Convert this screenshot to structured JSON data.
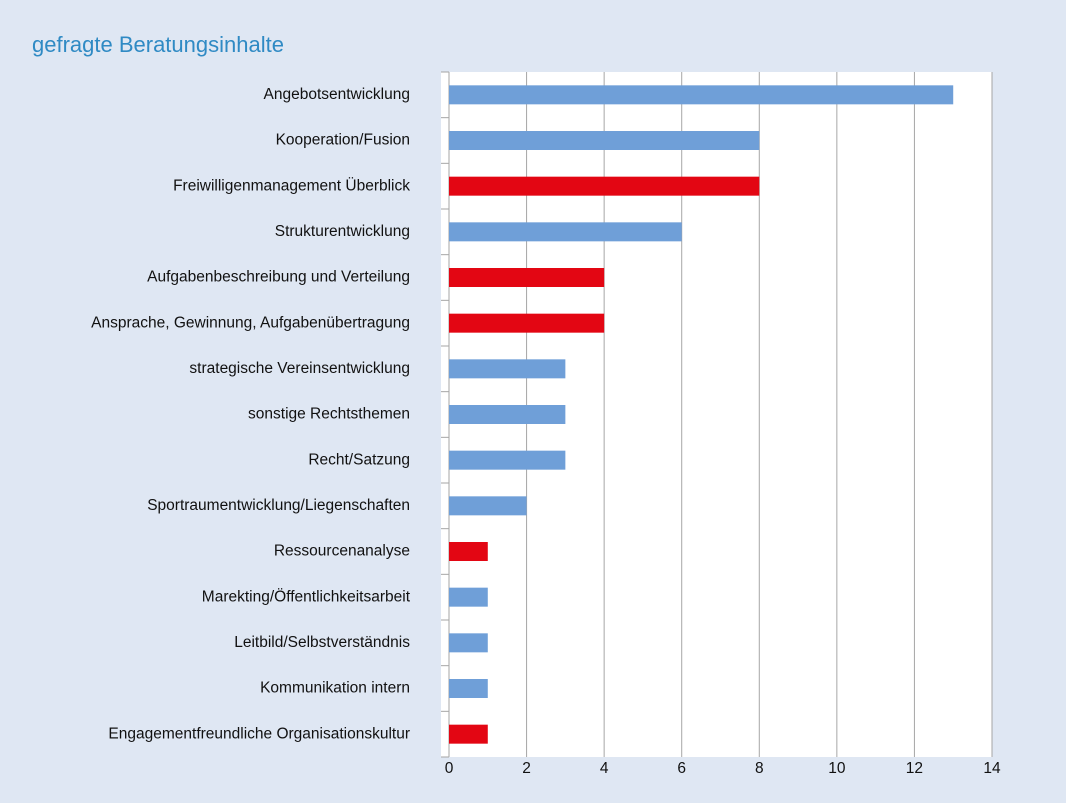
{
  "chart_data": {
    "type": "bar",
    "orientation": "horizontal",
    "title": "gefragte Beratungsinhalte",
    "categories": [
      "Angebotsentwicklung",
      "Kooperation/Fusion",
      "Freiwilligenmanagement Überblick",
      "Strukturentwicklung",
      "Aufgabenbeschreibung und Verteilung",
      "Ansprache, Gewinnung, Aufgabenübertragung",
      "strategische Vereinsentwicklung",
      "sonstige Rechtsthemen",
      "Recht/Satzung",
      "Sportraumentwicklung/Liegenschaften",
      "Ressourcenanalyse",
      "Marekting/Öffentlichkeitsarbeit",
      "Leitbild/Selbstverständnis",
      "Kommunikation intern",
      "Engagementfreundliche Organisationskultur"
    ],
    "values": [
      13,
      8,
      8,
      6,
      4,
      4,
      3,
      3,
      3,
      2,
      1,
      1,
      1,
      1,
      1
    ],
    "colors": [
      "#6f9fd8",
      "#6f9fd8",
      "#e30613",
      "#6f9fd8",
      "#e30613",
      "#e30613",
      "#6f9fd8",
      "#6f9fd8",
      "#6f9fd8",
      "#6f9fd8",
      "#e30613",
      "#6f9fd8",
      "#6f9fd8",
      "#6f9fd8",
      "#e30613"
    ],
    "xlim": [
      0,
      14
    ],
    "xticks": [
      0,
      2,
      4,
      6,
      8,
      10,
      12,
      14
    ],
    "grid": true
  }
}
